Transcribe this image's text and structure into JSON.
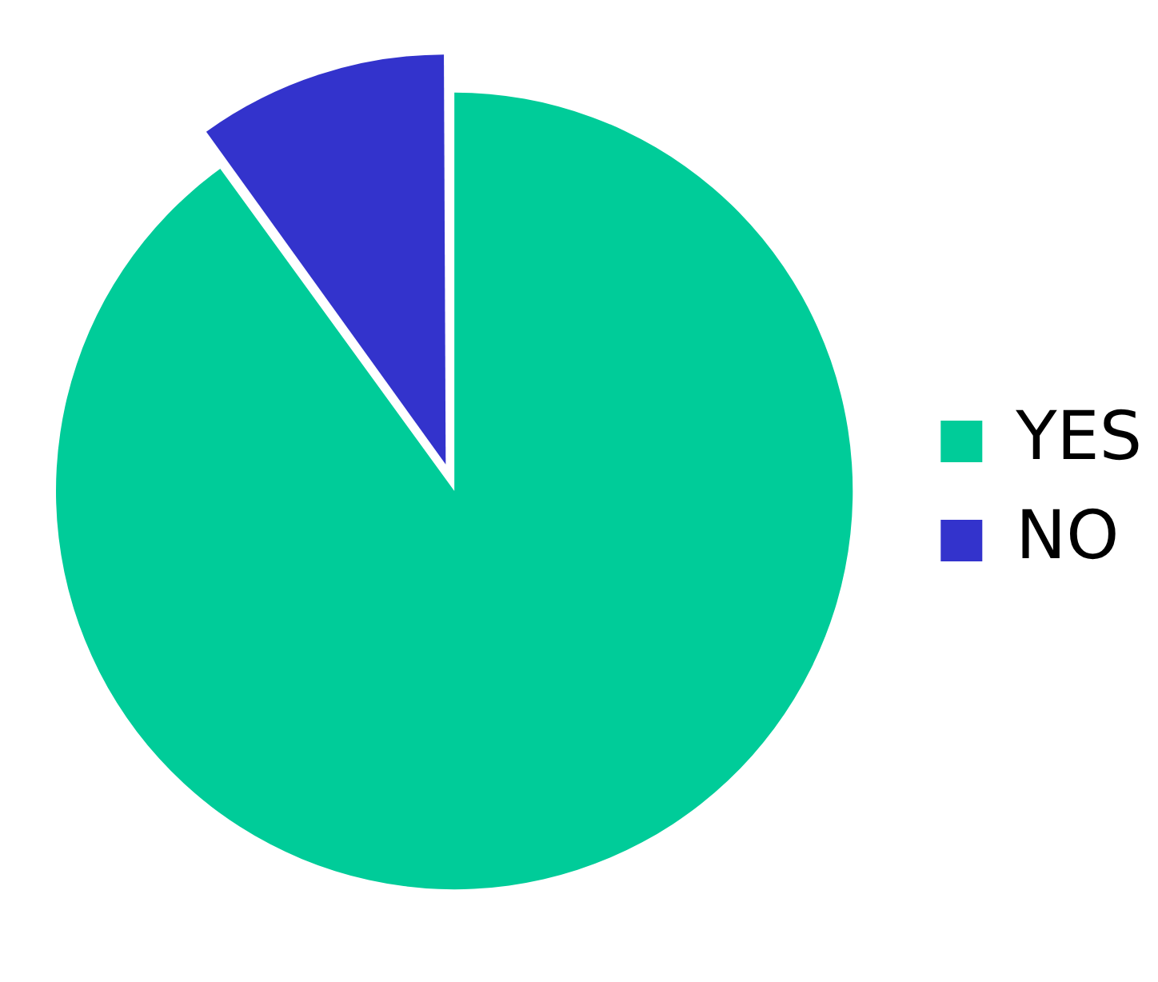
{
  "chart_data": {
    "type": "pie",
    "categories": [
      "YES",
      "NO"
    ],
    "values": [
      90,
      10
    ],
    "colors": [
      "#00cc99",
      "#3333cc"
    ],
    "legend": "right"
  }
}
